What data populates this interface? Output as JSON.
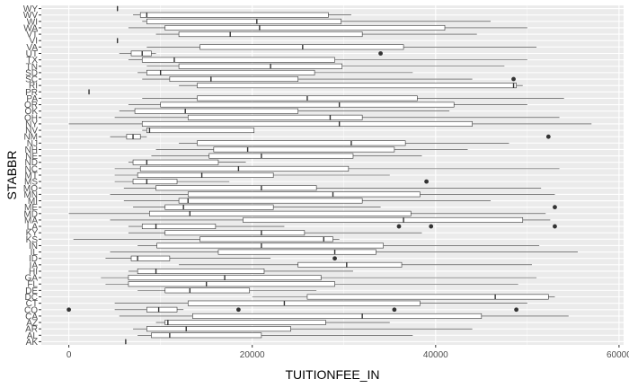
{
  "chart_data": {
    "type": "boxplot",
    "orientation": "horizontal",
    "xlabel": "TUITIONFEE_IN",
    "ylabel": "STABBR",
    "xlim": [
      -3000,
      60500
    ],
    "x_ticks": [
      0,
      20000,
      40000,
      60000
    ],
    "grid": true,
    "colors": {
      "panel": "#ebebeb",
      "grid_major": "#ffffff",
      "box_fill": "#ffffff",
      "box_line": "#333333",
      "tick_text": "#4d4d4d"
    },
    "categories": [
      "AK",
      "AL",
      "AR",
      "AZ",
      "CA",
      "CO",
      "CT",
      "DC",
      "DE",
      "FL",
      "GA",
      "HI",
      "IA",
      "ID",
      "IL",
      "IN",
      "KS",
      "KY",
      "LA",
      "MA",
      "MD",
      "ME",
      "MI",
      "MN",
      "MO",
      "MS",
      "MT",
      "NC",
      "ND",
      "NE",
      "NH",
      "NJ",
      "NM",
      "NV",
      "NY",
      "OH",
      "OK",
      "OR",
      "PA",
      "PR",
      "RI",
      "SC",
      "SD",
      "TN",
      "TX",
      "UT",
      "VA",
      "VI",
      "VT",
      "WA",
      "WI",
      "WV",
      "WY"
    ],
    "boxes": [
      {
        "cat": "AK",
        "min": 6200,
        "q1": 6200,
        "median": 6200,
        "q3": 6200,
        "max": 6200,
        "outliers": []
      },
      {
        "cat": "AL",
        "min": 7500,
        "q1": 9000,
        "median": 11000,
        "q3": 21000,
        "max": 37500,
        "outliers": []
      },
      {
        "cat": "AR",
        "min": 7000,
        "q1": 8500,
        "median": 12800,
        "q3": 24200,
        "max": 44000,
        "outliers": []
      },
      {
        "cat": "AZ",
        "min": 9500,
        "q1": 10500,
        "median": 10800,
        "q3": 28000,
        "max": 35000,
        "outliers": []
      },
      {
        "cat": "CA",
        "min": 5500,
        "q1": 13500,
        "median": 32000,
        "q3": 45000,
        "max": 54500,
        "outliers": []
      },
      {
        "cat": "CO",
        "min": 5000,
        "q1": 8500,
        "median": 9800,
        "q3": 11800,
        "max": 12500,
        "outliers": [
          0,
          18500,
          35500,
          48800
        ]
      },
      {
        "cat": "CT",
        "min": 5000,
        "q1": 13000,
        "median": 23500,
        "q3": 38300,
        "max": 50000,
        "outliers": []
      },
      {
        "cat": "DC",
        "min": 20000,
        "q1": 26000,
        "median": 46500,
        "q3": 52300,
        "max": 53000,
        "outliers": []
      },
      {
        "cat": "DE",
        "min": 7500,
        "q1": 10500,
        "median": 13200,
        "q3": 19700,
        "max": 27000,
        "outliers": []
      },
      {
        "cat": "FL",
        "min": 4000,
        "q1": 6500,
        "median": 15000,
        "q3": 29000,
        "max": 49000,
        "outliers": []
      },
      {
        "cat": "GA",
        "min": 3500,
        "q1": 6500,
        "median": 17000,
        "q3": 27500,
        "max": 51000,
        "outliers": []
      },
      {
        "cat": "HI",
        "min": 6500,
        "q1": 7500,
        "median": 9500,
        "q3": 21300,
        "max": 31000,
        "outliers": []
      },
      {
        "cat": "IA",
        "min": 12000,
        "q1": 25000,
        "median": 30300,
        "q3": 36300,
        "max": 50500,
        "outliers": []
      },
      {
        "cat": "ID",
        "min": 4000,
        "q1": 6800,
        "median": 7500,
        "q3": 11000,
        "max": 22000,
        "outliers": [
          29000
        ]
      },
      {
        "cat": "IL",
        "min": 4500,
        "q1": 16300,
        "median": 29000,
        "q3": 33500,
        "max": 55500,
        "outliers": []
      },
      {
        "cat": "IN",
        "min": 7500,
        "q1": 9600,
        "median": 21000,
        "q3": 34300,
        "max": 51300,
        "outliers": []
      },
      {
        "cat": "KS",
        "min": 500,
        "q1": 14300,
        "median": 27800,
        "q3": 28800,
        "max": 29500,
        "outliers": []
      },
      {
        "cat": "KY",
        "min": 6500,
        "q1": 10500,
        "median": 21000,
        "q3": 25700,
        "max": 38500,
        "outliers": []
      },
      {
        "cat": "LA",
        "min": 6500,
        "q1": 8000,
        "median": 9500,
        "q3": 16000,
        "max": 23500,
        "outliers": [
          36000,
          39500,
          53000
        ]
      },
      {
        "cat": "MA",
        "min": 4500,
        "q1": 19000,
        "median": 36500,
        "q3": 49500,
        "max": 52500,
        "outliers": []
      },
      {
        "cat": "MD",
        "min": 0,
        "q1": 8800,
        "median": 13200,
        "q3": 37300,
        "max": 52000,
        "outliers": []
      },
      {
        "cat": "ME",
        "min": 7000,
        "q1": 10500,
        "median": 12500,
        "q3": 22300,
        "max": 34000,
        "outliers": [
          53000
        ]
      },
      {
        "cat": "MI",
        "min": 6000,
        "q1": 12000,
        "median": 13000,
        "q3": 32000,
        "max": 46000,
        "outliers": []
      },
      {
        "cat": "MN",
        "min": 4500,
        "q1": 13000,
        "median": 28800,
        "q3": 38300,
        "max": 53000,
        "outliers": []
      },
      {
        "cat": "MO",
        "min": 6000,
        "q1": 9500,
        "median": 21000,
        "q3": 27000,
        "max": 51500,
        "outliers": []
      },
      {
        "cat": "MS",
        "min": 5000,
        "q1": 7000,
        "median": 8500,
        "q3": 11800,
        "max": 17500,
        "outliers": [
          39000
        ]
      },
      {
        "cat": "MT",
        "min": 5000,
        "q1": 7500,
        "median": 14500,
        "q3": 22300,
        "max": 35000,
        "outliers": []
      },
      {
        "cat": "NC",
        "min": 5000,
        "q1": 7800,
        "median": 18500,
        "q3": 30500,
        "max": 53500,
        "outliers": []
      },
      {
        "cat": "ND",
        "min": 6500,
        "q1": 7000,
        "median": 8500,
        "q3": 16300,
        "max": 19300,
        "outliers": []
      },
      {
        "cat": "NE",
        "min": 9000,
        "q1": 15300,
        "median": 21000,
        "q3": 31000,
        "max": 38500,
        "outliers": []
      },
      {
        "cat": "NH",
        "min": 9500,
        "q1": 15800,
        "median": 19500,
        "q3": 35500,
        "max": 43500,
        "outliers": []
      },
      {
        "cat": "NJ",
        "min": 12000,
        "q1": 14000,
        "median": 30800,
        "q3": 36700,
        "max": 48000,
        "outliers": []
      },
      {
        "cat": "NM",
        "min": 4500,
        "q1": 6300,
        "median": 7000,
        "q3": 7800,
        "max": 8500,
        "outliers": [
          52300
        ]
      },
      {
        "cat": "NV",
        "min": 8000,
        "q1": 8500,
        "median": 8800,
        "q3": 20200,
        "max": 20200,
        "outliers": []
      },
      {
        "cat": "NY",
        "min": 0,
        "q1": 8000,
        "median": 29500,
        "q3": 44000,
        "max": 57000,
        "outliers": []
      },
      {
        "cat": "OH",
        "min": 5000,
        "q1": 13000,
        "median": 28500,
        "q3": 32000,
        "max": 53500,
        "outliers": []
      },
      {
        "cat": "OK",
        "min": 5500,
        "q1": 7200,
        "median": 12700,
        "q3": 25000,
        "max": 41500,
        "outliers": []
      },
      {
        "cat": "OR",
        "min": 6500,
        "q1": 10000,
        "median": 29500,
        "q3": 42000,
        "max": 50000,
        "outliers": []
      },
      {
        "cat": "PA",
        "min": 8000,
        "q1": 14000,
        "median": 26000,
        "q3": 38000,
        "max": 54000,
        "outliers": []
      },
      {
        "cat": "PR",
        "min": 2200,
        "q1": 2200,
        "median": 2200,
        "q3": 2200,
        "max": 2200,
        "outliers": []
      },
      {
        "cat": "RI",
        "min": 12000,
        "q1": 14000,
        "median": 48500,
        "q3": 48800,
        "max": 49500,
        "outliers": []
      },
      {
        "cat": "SC",
        "min": 8000,
        "q1": 11000,
        "median": 15500,
        "q3": 25000,
        "max": 44000,
        "outliers": [
          48500
        ]
      },
      {
        "cat": "SD",
        "min": 7500,
        "q1": 8500,
        "median": 10000,
        "q3": 26800,
        "max": 37500,
        "outliers": []
      },
      {
        "cat": "TN",
        "min": 8500,
        "q1": 12000,
        "median": 22000,
        "q3": 29800,
        "max": 47500,
        "outliers": []
      },
      {
        "cat": "TX",
        "min": 6500,
        "q1": 8000,
        "median": 11500,
        "q3": 29000,
        "max": 50000,
        "outliers": []
      },
      {
        "cat": "UT",
        "min": 5500,
        "q1": 6800,
        "median": 8000,
        "q3": 9000,
        "max": 9500,
        "outliers": [
          34000
        ]
      },
      {
        "cat": "VA",
        "min": 8500,
        "q1": 14300,
        "median": 25500,
        "q3": 36500,
        "max": 51000,
        "outliers": []
      },
      {
        "cat": "VI",
        "min": 5300,
        "q1": 5300,
        "median": 5300,
        "q3": 5300,
        "max": 5300,
        "outliers": []
      },
      {
        "cat": "VT",
        "min": 9500,
        "q1": 12000,
        "median": 17600,
        "q3": 32000,
        "max": 44500,
        "outliers": []
      },
      {
        "cat": "WA",
        "min": 6500,
        "q1": 10500,
        "median": 20800,
        "q3": 41000,
        "max": 50000,
        "outliers": []
      },
      {
        "cat": "WI",
        "min": 8000,
        "q1": 8500,
        "median": 20500,
        "q3": 29700,
        "max": 46000,
        "outliers": []
      },
      {
        "cat": "WV",
        "min": 7000,
        "q1": 7800,
        "median": 8500,
        "q3": 28300,
        "max": 30800,
        "outliers": []
      },
      {
        "cat": "WY",
        "min": 5300,
        "q1": 5300,
        "median": 5300,
        "q3": 5300,
        "max": 5300,
        "outliers": []
      }
    ]
  }
}
